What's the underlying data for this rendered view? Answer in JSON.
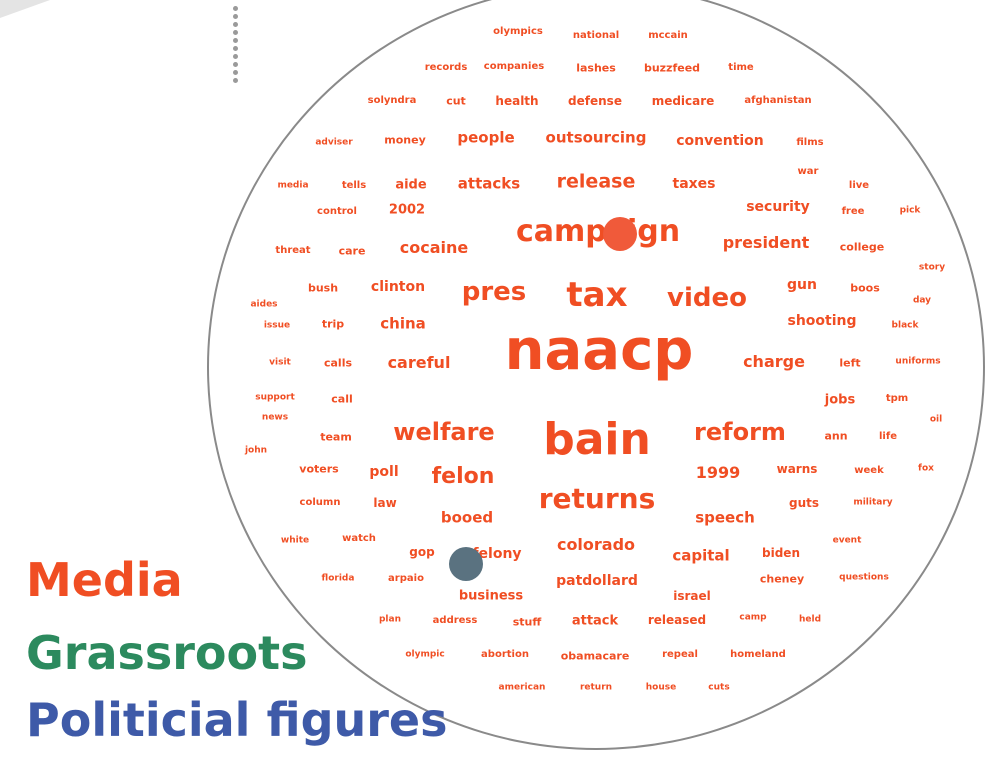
{
  "legend": [
    {
      "label": "Media",
      "color": "#f04e23"
    },
    {
      "label": "Grassroots",
      "color": "#2c8a5e"
    },
    {
      "label": "Politicial figures",
      "color": "#3e5aa8"
    }
  ],
  "markers": [
    {
      "name": "orange-dot",
      "color": "#f05a3a"
    },
    {
      "name": "slate-dot",
      "color": "#5a7280"
    }
  ],
  "words": [
    "olympics",
    "national",
    "mccain",
    "records",
    "companies",
    "lashes",
    "buzzfeed",
    "time",
    "solyndra",
    "cut",
    "health",
    "defense",
    "medicare",
    "afghanistan",
    "adviser",
    "money",
    "people",
    "outsourcing",
    "convention",
    "films",
    "media",
    "tells",
    "aide",
    "attacks",
    "release",
    "taxes",
    "war",
    "live",
    "control",
    "2002",
    "security",
    "free",
    "pick",
    "threat",
    "care",
    "cocaine",
    "campaign",
    "president",
    "college",
    "story",
    "bush",
    "clinton",
    "pres",
    "tax",
    "video",
    "gun",
    "boos",
    "aides",
    "day",
    "issue",
    "trip",
    "china",
    "shooting",
    "black",
    "visit",
    "calls",
    "careful",
    "naacp",
    "charge",
    "left",
    "uniforms",
    "support",
    "call",
    "jobs",
    "tpm",
    "news",
    "oil",
    "team",
    "welfare",
    "bain",
    "reform",
    "ann",
    "life",
    "john",
    "voters",
    "poll",
    "felon",
    "1999",
    "warns",
    "week",
    "fox",
    "column",
    "law",
    "returns",
    "guts",
    "military",
    "booed",
    "speech",
    "white",
    "watch",
    "event",
    "gop",
    "felony",
    "colorado",
    "capital",
    "biden",
    "florida",
    "arpaio",
    "patdollard",
    "cheney",
    "questions",
    "business",
    "israel",
    "plan",
    "address",
    "stuff",
    "attack",
    "released",
    "camp",
    "held",
    "olympic",
    "abortion",
    "obamacare",
    "repeal",
    "homeland",
    "american",
    "return",
    "house",
    "cuts"
  ]
}
